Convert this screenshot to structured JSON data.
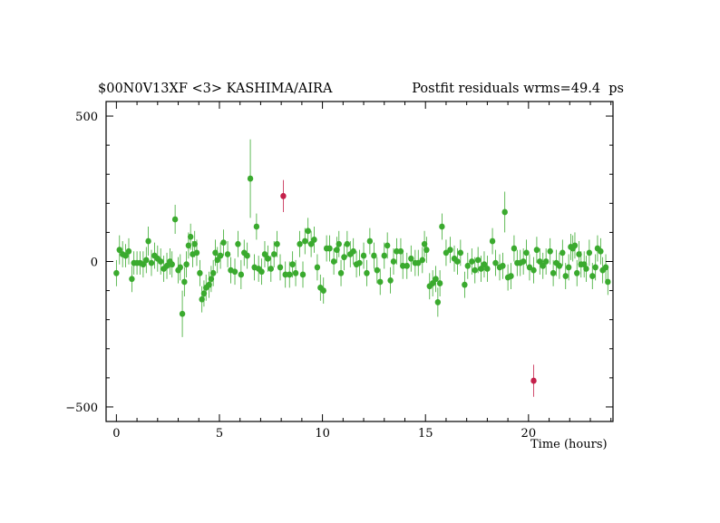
{
  "chart_data": {
    "type": "scatter",
    "title_left": "$00N0V13XF <3> KASHIMA/AIRA",
    "title_right": "Postfit residuals wrms=49.4  ps",
    "xlabel": "Time (hours)",
    "ylabel": "",
    "xlim": [
      -0.5,
      24.1
    ],
    "ylim": [
      -550,
      550
    ],
    "x_ticks": [
      0,
      5,
      10,
      15,
      20
    ],
    "y_ticks": [
      -500,
      0,
      500
    ],
    "grid": false,
    "colors": {
      "good": "#3aaa2e",
      "outlier": "#c4204a",
      "axis": "#000000"
    },
    "series": [
      {
        "role": "good",
        "points": [
          [
            0.0,
            -40,
            45
          ],
          [
            0.15,
            40,
            50
          ],
          [
            0.3,
            25,
            45
          ],
          [
            0.45,
            20,
            40
          ],
          [
            0.6,
            35,
            45
          ],
          [
            0.75,
            -60,
            45
          ],
          [
            0.85,
            -5,
            40
          ],
          [
            1.0,
            -5,
            40
          ],
          [
            1.15,
            -5,
            40
          ],
          [
            1.3,
            -10,
            45
          ],
          [
            1.45,
            5,
            45
          ],
          [
            1.55,
            70,
            50
          ],
          [
            1.7,
            -5,
            45
          ],
          [
            1.85,
            20,
            45
          ],
          [
            2.0,
            10,
            45
          ],
          [
            2.15,
            0,
            45
          ],
          [
            2.3,
            -25,
            45
          ],
          [
            2.45,
            -15,
            45
          ],
          [
            2.6,
            0,
            45
          ],
          [
            2.7,
            -10,
            45
          ],
          [
            2.85,
            145,
            50
          ],
          [
            3.0,
            -30,
            45
          ],
          [
            3.1,
            -20,
            45
          ],
          [
            3.2,
            -180,
            80
          ],
          [
            3.3,
            -70,
            50
          ],
          [
            3.4,
            -10,
            45
          ],
          [
            3.5,
            55,
            45
          ],
          [
            3.6,
            85,
            45
          ],
          [
            3.7,
            25,
            45
          ],
          [
            3.8,
            60,
            45
          ],
          [
            3.9,
            30,
            45
          ],
          [
            4.05,
            -40,
            45
          ],
          [
            4.15,
            -130,
            45
          ],
          [
            4.25,
            -110,
            45
          ],
          [
            4.35,
            -90,
            45
          ],
          [
            4.5,
            -80,
            45
          ],
          [
            4.6,
            -60,
            45
          ],
          [
            4.7,
            -40,
            45
          ],
          [
            4.8,
            30,
            45
          ],
          [
            4.9,
            5,
            45
          ],
          [
            5.05,
            20,
            45
          ],
          [
            5.2,
            65,
            45
          ],
          [
            5.4,
            25,
            45
          ],
          [
            5.55,
            -30,
            45
          ],
          [
            5.75,
            -35,
            45
          ],
          [
            5.9,
            60,
            45
          ],
          [
            6.05,
            -45,
            50
          ],
          [
            6.2,
            30,
            45
          ],
          [
            6.35,
            20,
            45
          ],
          [
            6.5,
            285,
            135
          ],
          [
            6.7,
            -20,
            45
          ],
          [
            6.8,
            120,
            45
          ],
          [
            6.9,
            -25,
            45
          ],
          [
            7.05,
            -35,
            45
          ],
          [
            7.2,
            25,
            45
          ],
          [
            7.35,
            10,
            45
          ],
          [
            7.5,
            -25,
            45
          ],
          [
            7.65,
            25,
            45
          ],
          [
            7.8,
            60,
            45
          ],
          [
            7.95,
            -20,
            45
          ],
          [
            8.2,
            -45,
            45
          ],
          [
            8.4,
            -45,
            45
          ],
          [
            8.55,
            -10,
            45
          ],
          [
            8.7,
            -40,
            45
          ],
          [
            8.9,
            60,
            45
          ],
          [
            9.05,
            -45,
            45
          ],
          [
            9.15,
            70,
            45
          ],
          [
            9.3,
            105,
            45
          ],
          [
            9.45,
            60,
            45
          ],
          [
            9.6,
            75,
            45
          ],
          [
            9.75,
            -20,
            45
          ],
          [
            9.9,
            -90,
            45
          ],
          [
            10.05,
            -100,
            45
          ],
          [
            10.2,
            45,
            45
          ],
          [
            10.35,
            45,
            45
          ],
          [
            10.55,
            0,
            45
          ],
          [
            10.7,
            40,
            45
          ],
          [
            10.8,
            60,
            45
          ],
          [
            10.9,
            -40,
            45
          ],
          [
            11.05,
            15,
            45
          ],
          [
            11.2,
            60,
            45
          ],
          [
            11.35,
            25,
            45
          ],
          [
            11.5,
            35,
            45
          ],
          [
            11.65,
            -10,
            45
          ],
          [
            11.8,
            -5,
            45
          ],
          [
            12.0,
            20,
            45
          ],
          [
            12.15,
            -40,
            45
          ],
          [
            12.3,
            70,
            45
          ],
          [
            12.5,
            20,
            45
          ],
          [
            12.65,
            -30,
            45
          ],
          [
            12.8,
            -70,
            45
          ],
          [
            13.0,
            20,
            45
          ],
          [
            13.15,
            55,
            45
          ],
          [
            13.3,
            -65,
            45
          ],
          [
            13.45,
            0,
            45
          ],
          [
            13.6,
            35,
            45
          ],
          [
            13.8,
            35,
            45
          ],
          [
            13.9,
            -15,
            45
          ],
          [
            14.1,
            -15,
            45
          ],
          [
            14.3,
            10,
            45
          ],
          [
            14.5,
            -5,
            45
          ],
          [
            14.65,
            -5,
            45
          ],
          [
            14.85,
            5,
            45
          ],
          [
            14.95,
            60,
            45
          ],
          [
            15.05,
            40,
            45
          ],
          [
            15.2,
            -85,
            45
          ],
          [
            15.35,
            -75,
            45
          ],
          [
            15.5,
            -60,
            45
          ],
          [
            15.6,
            -140,
            50
          ],
          [
            15.7,
            -75,
            45
          ],
          [
            15.8,
            120,
            45
          ],
          [
            16.0,
            30,
            45
          ],
          [
            16.2,
            40,
            45
          ],
          [
            16.4,
            10,
            45
          ],
          [
            16.55,
            0,
            45
          ],
          [
            16.7,
            30,
            45
          ],
          [
            16.9,
            -80,
            45
          ],
          [
            17.05,
            -15,
            45
          ],
          [
            17.25,
            0,
            45
          ],
          [
            17.4,
            -30,
            45
          ],
          [
            17.55,
            5,
            45
          ],
          [
            17.7,
            -25,
            45
          ],
          [
            17.85,
            -10,
            45
          ],
          [
            18.0,
            -25,
            45
          ],
          [
            18.25,
            70,
            45
          ],
          [
            18.4,
            -5,
            45
          ],
          [
            18.6,
            -20,
            45
          ],
          [
            18.75,
            -15,
            45
          ],
          [
            18.85,
            170,
            70
          ],
          [
            19.0,
            -55,
            45
          ],
          [
            19.15,
            -50,
            45
          ],
          [
            19.3,
            45,
            45
          ],
          [
            19.45,
            -5,
            45
          ],
          [
            19.6,
            -5,
            45
          ],
          [
            19.75,
            0,
            45
          ],
          [
            19.9,
            30,
            45
          ],
          [
            20.05,
            -20,
            45
          ],
          [
            20.25,
            -30,
            45
          ],
          [
            20.4,
            40,
            45
          ],
          [
            20.55,
            0,
            45
          ],
          [
            20.7,
            -15,
            45
          ],
          [
            20.85,
            0,
            45
          ],
          [
            21.05,
            35,
            45
          ],
          [
            21.2,
            -40,
            45
          ],
          [
            21.35,
            -5,
            45
          ],
          [
            21.5,
            -15,
            45
          ],
          [
            21.65,
            30,
            45
          ],
          [
            21.8,
            -50,
            45
          ],
          [
            21.95,
            -20,
            45
          ],
          [
            22.05,
            50,
            45
          ],
          [
            22.15,
            45,
            45
          ],
          [
            22.25,
            55,
            45
          ],
          [
            22.35,
            -40,
            45
          ],
          [
            22.45,
            25,
            45
          ],
          [
            22.55,
            -10,
            45
          ],
          [
            22.7,
            -10,
            45
          ],
          [
            22.8,
            -25,
            45
          ],
          [
            22.95,
            30,
            45
          ],
          [
            23.1,
            -50,
            45
          ],
          [
            23.25,
            -20,
            45
          ],
          [
            23.35,
            45,
            45
          ],
          [
            23.5,
            35,
            45
          ],
          [
            23.6,
            -30,
            45
          ],
          [
            23.75,
            -20,
            45
          ],
          [
            23.85,
            -70,
            45
          ]
        ]
      },
      {
        "role": "outlier",
        "points": [
          [
            8.1,
            225,
            55
          ],
          [
            20.25,
            -410,
            55
          ]
        ]
      }
    ]
  }
}
